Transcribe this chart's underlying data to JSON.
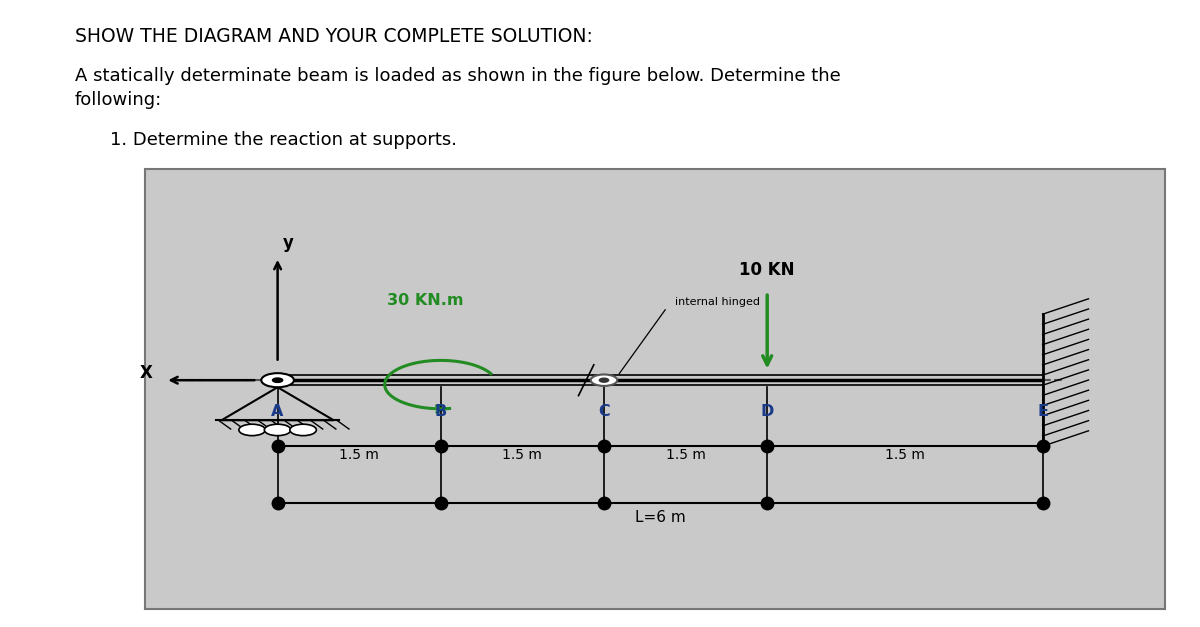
{
  "title1": "SHOW THE DIAGRAM AND YOUR COMPLETE SOLUTION:",
  "title2a": "A statically determinate beam is loaded as shown in the figure below. Determine the",
  "title2b": "following:",
  "title3": "1. Determine the reaction at supports.",
  "bg_color": "#c9c9c9",
  "beam_color": "#1a1a1a",
  "dashed_color": "#555555",
  "green_color": "#228B22",
  "blue_color": "#1a3a8a",
  "segment_labels": [
    "1.5 m",
    "1.5 m",
    "1.5 m",
    "1.5 m"
  ],
  "total_label": "L=6 m",
  "moment_label": "30 KN.m",
  "force_label": "10 KN",
  "internal_hinge_label": "internal hinged",
  "x_label": "X",
  "y_label": "y"
}
